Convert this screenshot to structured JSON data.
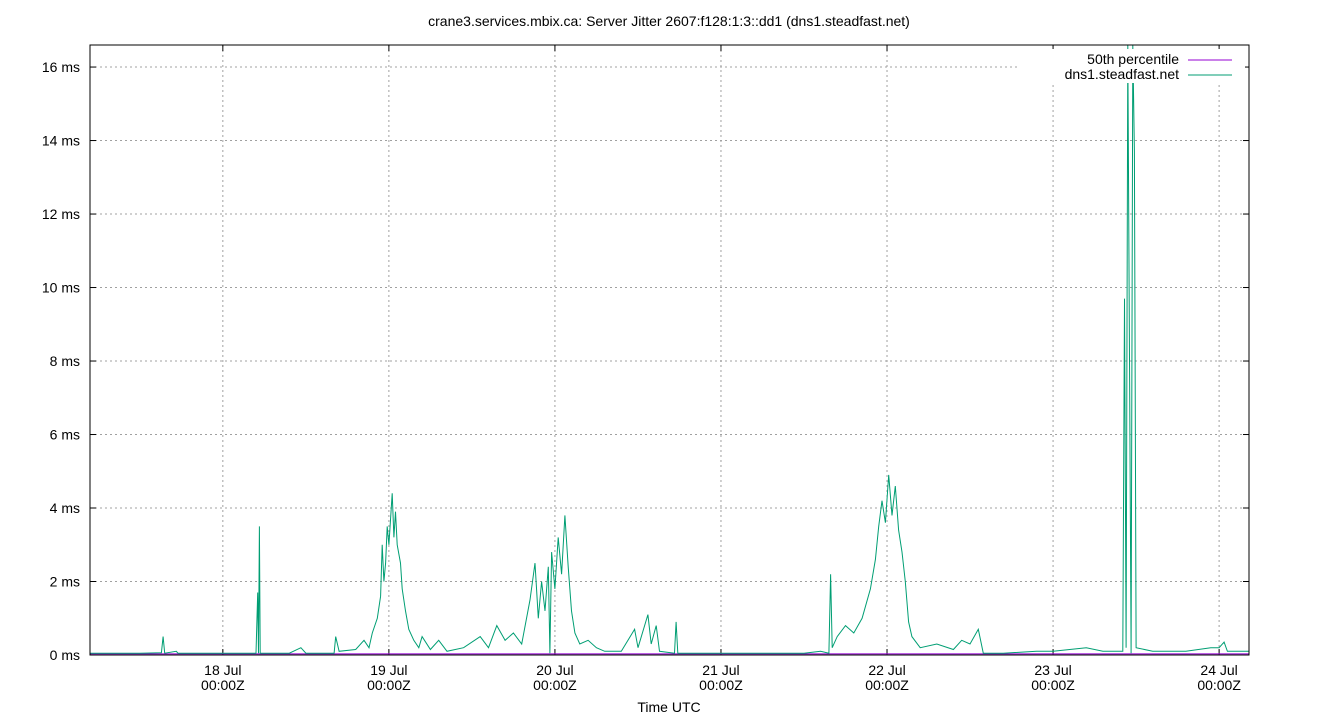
{
  "chart_data": {
    "type": "line",
    "title": "crane3.services.mbix.ca: Server Jitter 2607:f128:1:3::dd1 (dns1.steadfast.net)",
    "xlabel": "Time UTC",
    "ylabel": "",
    "x_unit": "days since 18 Jul 00:00Z",
    "xlim": [
      -0.8,
      6.18
    ],
    "ylim": [
      0,
      16.6
    ],
    "yticks": [
      {
        "value": 0,
        "label": "0 ms"
      },
      {
        "value": 2,
        "label": "2 ms"
      },
      {
        "value": 4,
        "label": "4 ms"
      },
      {
        "value": 6,
        "label": "6 ms"
      },
      {
        "value": 8,
        "label": "8 ms"
      },
      {
        "value": 10,
        "label": "10 ms"
      },
      {
        "value": 12,
        "label": "12 ms"
      },
      {
        "value": 14,
        "label": "14 ms"
      },
      {
        "value": 16,
        "label": "16 ms"
      }
    ],
    "xticks": [
      {
        "value": 0,
        "line1": "18 Jul",
        "line2": "00:00Z"
      },
      {
        "value": 1,
        "line1": "19 Jul",
        "line2": "00:00Z"
      },
      {
        "value": 2,
        "line1": "20 Jul",
        "line2": "00:00Z"
      },
      {
        "value": 3,
        "line1": "21 Jul",
        "line2": "00:00Z"
      },
      {
        "value": 4,
        "line1": "22 Jul",
        "line2": "00:00Z"
      },
      {
        "value": 5,
        "line1": "23 Jul",
        "line2": "00:00Z"
      },
      {
        "value": 6,
        "line1": "24 Jul",
        "line2": "00:00Z"
      }
    ],
    "grid": true,
    "legend_position": "top-right",
    "series": [
      {
        "name": "50th percentile",
        "color": "#9400d3",
        "points": [
          [
            -0.8,
            0.03
          ],
          [
            6.18,
            0.03
          ]
        ]
      },
      {
        "name": "dns1.steadfast.net",
        "color": "#009e73",
        "points": [
          [
            -0.8,
            0.05
          ],
          [
            -0.5,
            0.05
          ],
          [
            -0.37,
            0.06
          ],
          [
            -0.36,
            0.5
          ],
          [
            -0.35,
            0.05
          ],
          [
            -0.28,
            0.1
          ],
          [
            -0.27,
            0.05
          ],
          [
            -0.1,
            0.05
          ],
          [
            0.0,
            0.05
          ],
          [
            0.2,
            0.05
          ],
          [
            0.21,
            1.7
          ],
          [
            0.215,
            0.05
          ],
          [
            0.22,
            3.5
          ],
          [
            0.225,
            0.05
          ],
          [
            0.4,
            0.05
          ],
          [
            0.47,
            0.2
          ],
          [
            0.5,
            0.05
          ],
          [
            0.67,
            0.05
          ],
          [
            0.68,
            0.5
          ],
          [
            0.7,
            0.1
          ],
          [
            0.8,
            0.15
          ],
          [
            0.85,
            0.4
          ],
          [
            0.88,
            0.2
          ],
          [
            0.9,
            0.6
          ],
          [
            0.93,
            1.0
          ],
          [
            0.95,
            1.6
          ],
          [
            0.96,
            3.0
          ],
          [
            0.97,
            2.0
          ],
          [
            0.98,
            2.5
          ],
          [
            0.99,
            3.5
          ],
          [
            1.0,
            3.0
          ],
          [
            1.02,
            4.4
          ],
          [
            1.03,
            3.2
          ],
          [
            1.04,
            3.9
          ],
          [
            1.05,
            3.0
          ],
          [
            1.07,
            2.5
          ],
          [
            1.08,
            1.8
          ],
          [
            1.1,
            1.2
          ],
          [
            1.12,
            0.7
          ],
          [
            1.15,
            0.4
          ],
          [
            1.18,
            0.2
          ],
          [
            1.2,
            0.5
          ],
          [
            1.25,
            0.15
          ],
          [
            1.3,
            0.4
          ],
          [
            1.35,
            0.1
          ],
          [
            1.45,
            0.2
          ],
          [
            1.55,
            0.5
          ],
          [
            1.6,
            0.2
          ],
          [
            1.65,
            0.8
          ],
          [
            1.7,
            0.4
          ],
          [
            1.75,
            0.6
          ],
          [
            1.8,
            0.3
          ],
          [
            1.85,
            1.5
          ],
          [
            1.88,
            2.5
          ],
          [
            1.9,
            1.0
          ],
          [
            1.92,
            2.0
          ],
          [
            1.94,
            1.2
          ],
          [
            1.96,
            2.4
          ],
          [
            1.97,
            0.05
          ],
          [
            1.98,
            2.8
          ],
          [
            2.0,
            1.8
          ],
          [
            2.02,
            3.2
          ],
          [
            2.04,
            2.2
          ],
          [
            2.06,
            3.8
          ],
          [
            2.08,
            2.4
          ],
          [
            2.1,
            1.2
          ],
          [
            2.12,
            0.6
          ],
          [
            2.15,
            0.3
          ],
          [
            2.2,
            0.4
          ],
          [
            2.25,
            0.2
          ],
          [
            2.3,
            0.1
          ],
          [
            2.4,
            0.1
          ],
          [
            2.48,
            0.7
          ],
          [
            2.5,
            0.2
          ],
          [
            2.56,
            1.1
          ],
          [
            2.58,
            0.3
          ],
          [
            2.61,
            0.8
          ],
          [
            2.63,
            0.1
          ],
          [
            2.72,
            0.05
          ],
          [
            2.73,
            0.9
          ],
          [
            2.74,
            0.05
          ],
          [
            3.0,
            0.05
          ],
          [
            3.5,
            0.05
          ],
          [
            3.6,
            0.1
          ],
          [
            3.65,
            0.05
          ],
          [
            3.66,
            2.2
          ],
          [
            3.67,
            0.2
          ],
          [
            3.7,
            0.5
          ],
          [
            3.75,
            0.8
          ],
          [
            3.8,
            0.6
          ],
          [
            3.85,
            1.0
          ],
          [
            3.9,
            1.8
          ],
          [
            3.93,
            2.6
          ],
          [
            3.95,
            3.5
          ],
          [
            3.97,
            4.2
          ],
          [
            3.99,
            3.6
          ],
          [
            4.01,
            4.9
          ],
          [
            4.03,
            3.8
          ],
          [
            4.05,
            4.6
          ],
          [
            4.07,
            3.4
          ],
          [
            4.09,
            2.8
          ],
          [
            4.11,
            2.0
          ],
          [
            4.13,
            0.9
          ],
          [
            4.15,
            0.5
          ],
          [
            4.2,
            0.2
          ],
          [
            4.3,
            0.3
          ],
          [
            4.4,
            0.15
          ],
          [
            4.45,
            0.4
          ],
          [
            4.5,
            0.3
          ],
          [
            4.55,
            0.7
          ],
          [
            4.58,
            0.05
          ],
          [
            4.7,
            0.05
          ],
          [
            4.9,
            0.1
          ],
          [
            5.0,
            0.1
          ],
          [
            5.2,
            0.2
          ],
          [
            5.3,
            0.1
          ],
          [
            5.42,
            0.1
          ],
          [
            5.43,
            9.7
          ],
          [
            5.44,
            0.2
          ],
          [
            5.45,
            16.6
          ],
          [
            5.47,
            0.05
          ],
          [
            5.48,
            16.6
          ],
          [
            5.49,
            13.7
          ],
          [
            5.5,
            0.2
          ],
          [
            5.6,
            0.1
          ],
          [
            5.8,
            0.1
          ],
          [
            5.95,
            0.2
          ],
          [
            6.0,
            0.2
          ],
          [
            6.03,
            0.35
          ],
          [
            6.05,
            0.1
          ],
          [
            6.18,
            0.1
          ]
        ]
      }
    ]
  }
}
